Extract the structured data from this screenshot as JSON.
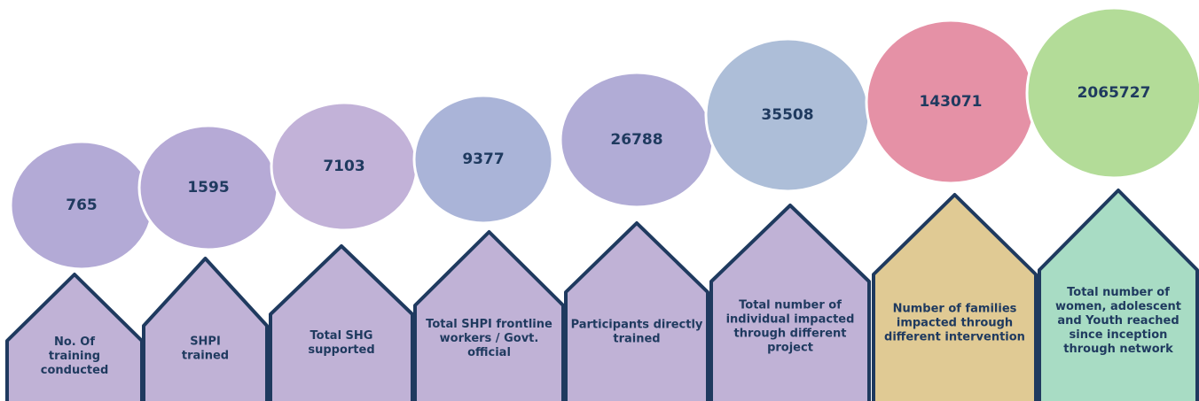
{
  "items": [
    {
      "value": 765,
      "label": [
        "No.  Of",
        "training",
        "conducted"
      ]
    },
    {
      "value": 1595,
      "label": [
        "SHPI",
        "trained"
      ]
    },
    {
      "value": 7103,
      "label": [
        "Total SHG",
        "supported"
      ]
    },
    {
      "value": 9377,
      "label": [
        "Total SHPI frontline",
        "workers / Govt.",
        "official"
      ]
    },
    {
      "value": 26788,
      "label": [
        "Participants directly",
        "trained"
      ]
    },
    {
      "value": 35508,
      "label": [
        "Total number of",
        "individual impacted",
        "through different",
        "project"
      ]
    },
    {
      "value": 143071,
      "label": [
        "Number of families",
        "impacted through",
        "different intervention"
      ]
    },
    {
      "value": 2065727,
      "label": [
        "Total number of",
        "women, adolescent",
        "and Youth reached",
        "since inception",
        "through network"
      ]
    }
  ]
}
